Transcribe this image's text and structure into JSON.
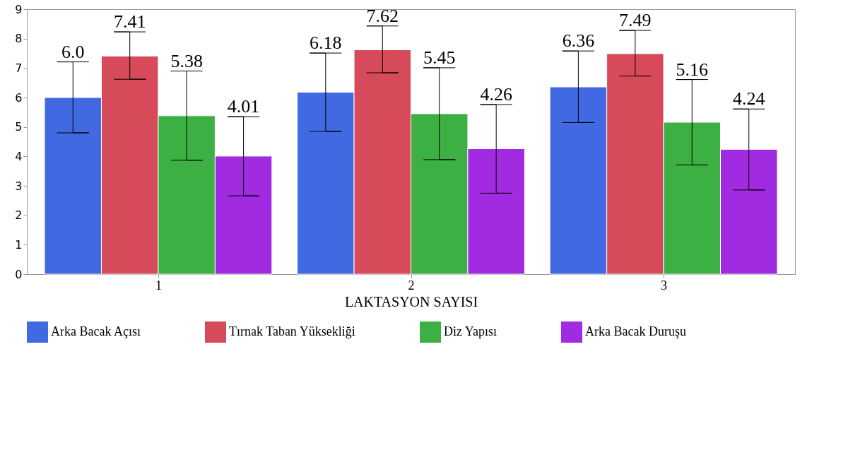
{
  "chart_data": {
    "type": "bar",
    "xlabel": "LAKTASYON SAYISI",
    "categories": [
      "1",
      "2",
      "3"
    ],
    "series": [
      {
        "name": "Arka Bacak Açısı",
        "color": "#4169e1",
        "values": [
          6.0,
          6.18,
          6.36
        ],
        "errors": [
          [
            4.8,
            7.21
          ],
          [
            4.85,
            7.51
          ],
          [
            5.15,
            7.58
          ]
        ],
        "value_labels": [
          "6.0",
          "6.18",
          "6.36"
        ]
      },
      {
        "name": "Tırnak Taban Yüksekliği",
        "color": "#d64a5a",
        "values": [
          7.41,
          7.62,
          7.49
        ],
        "errors": [
          [
            6.62,
            8.23
          ],
          [
            6.84,
            8.43
          ],
          [
            6.73,
            8.28
          ]
        ],
        "value_labels": [
          "7.41",
          "7.62",
          "7.49"
        ]
      },
      {
        "name": "Diz Yapısı",
        "color": "#3cb043",
        "values": [
          5.38,
          5.45,
          5.16
        ],
        "errors": [
          [
            3.87,
            6.9
          ],
          [
            3.89,
            7.01
          ],
          [
            3.71,
            6.61
          ]
        ],
        "value_labels": [
          "5.38",
          "5.45",
          "5.16"
        ]
      },
      {
        "name": "Arka Bacak Duruşu",
        "color": "#a02be0",
        "values": [
          4.01,
          4.26,
          4.24
        ],
        "errors": [
          [
            2.66,
            5.35
          ],
          [
            2.75,
            5.76
          ],
          [
            2.86,
            5.61
          ]
        ],
        "value_labels": [
          "4.01",
          "4.26",
          "4.24"
        ]
      }
    ],
    "ylim": [
      0,
      9
    ],
    "yticks": [
      0,
      1,
      2,
      3,
      4,
      5,
      6,
      7,
      8,
      9
    ],
    "grid": false,
    "legend": "bottom"
  }
}
